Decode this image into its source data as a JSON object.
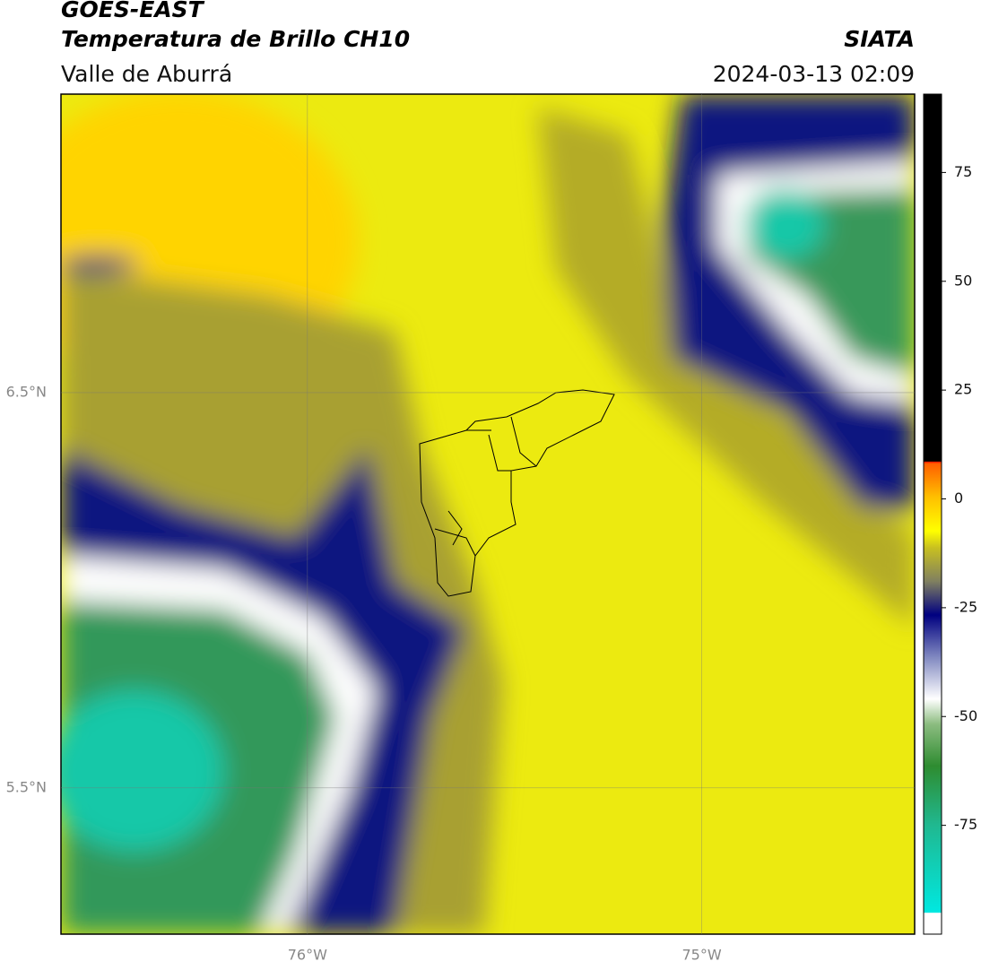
{
  "header": {
    "satellite": "GOES-EAST",
    "product": "Temperatura de Brillo CH10",
    "region": "Valle de Aburrá",
    "agency": "SIATA",
    "datetime": "2024-03-13 02:09"
  },
  "map": {
    "xlim": [
      -76.625,
      -74.46
    ],
    "ylim": [
      5.13,
      7.255
    ],
    "xticks": [
      {
        "value": -76,
        "label": "76°W"
      },
      {
        "value": -75,
        "label": "75°W"
      }
    ],
    "yticks": [
      {
        "value": 6.5,
        "label": "6.5°N"
      },
      {
        "value": 5.5,
        "label": "5.5°N"
      }
    ],
    "grid": true
  },
  "colorbar": {
    "clim": [
      -100,
      93
    ],
    "ticks": [
      75,
      50,
      25,
      0,
      -25,
      -50,
      -75
    ]
  }
}
